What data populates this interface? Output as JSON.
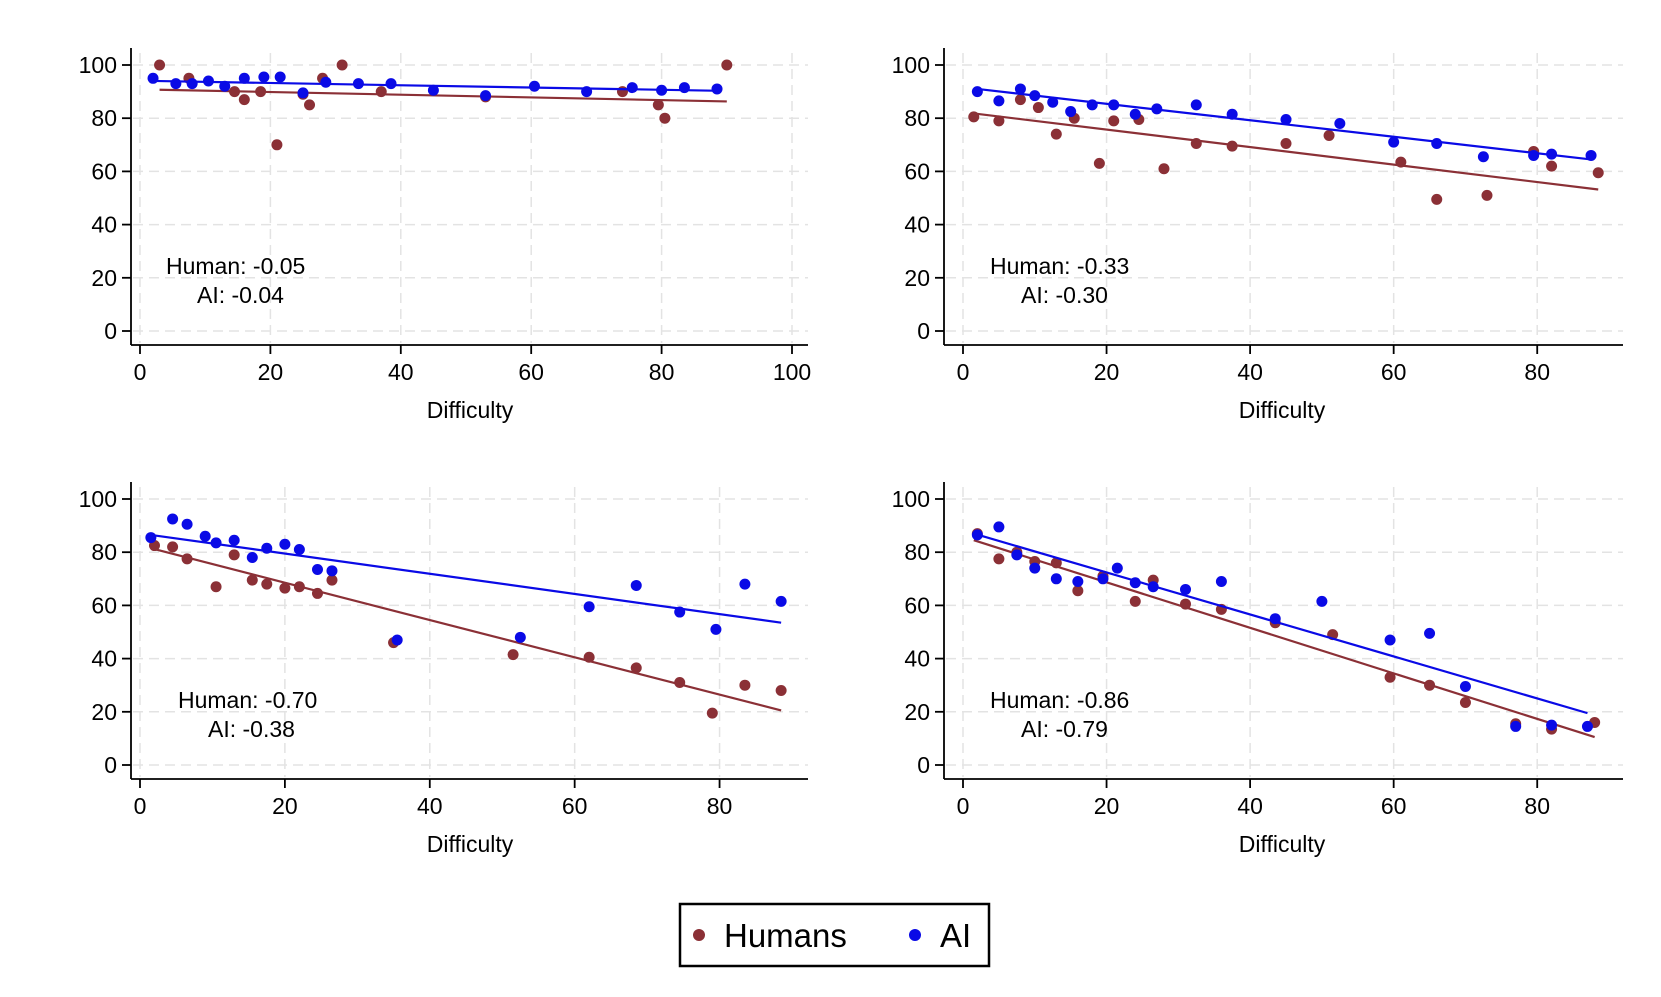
{
  "colors": {
    "human": "#8b3036",
    "ai": "#0a0ae6",
    "grid": "#e3e3e3",
    "axis": "#000000"
  },
  "legend": {
    "placement": "bottom-center",
    "items": [
      {
        "label": "Humans",
        "color_key": "human"
      },
      {
        "label": "AI",
        "color_key": "ai"
      }
    ]
  },
  "chart_data": [
    {
      "type": "scatter",
      "title": "",
      "xlabel": "Difficulty",
      "ylabel": "",
      "xlim": [
        0,
        100
      ],
      "ylim": [
        0,
        100
      ],
      "xticks": [
        "0",
        "20",
        "40",
        "60",
        "80",
        "100"
      ],
      "yticks": [
        "0",
        "20",
        "40",
        "60",
        "80",
        "100"
      ],
      "annotation": {
        "human": "Human: -0.05",
        "ai": "AI: -0.04"
      },
      "series": [
        {
          "name": "Humans",
          "color_key": "human",
          "points": [
            [
              3,
              100
            ],
            [
              7.5,
              95
            ],
            [
              14.5,
              90
            ],
            [
              16,
              87
            ],
            [
              18.5,
              90
            ],
            [
              21,
              70
            ],
            [
              25,
              89
            ],
            [
              26,
              85
            ],
            [
              28,
              95
            ],
            [
              31,
              100
            ],
            [
              37,
              90
            ],
            [
              53,
              88
            ],
            [
              74,
              90
            ],
            [
              79.5,
              85
            ],
            [
              80.5,
              80
            ],
            [
              90,
              100
            ]
          ],
          "trend": [
            [
              3,
              90.7
            ],
            [
              90,
              86.3
            ]
          ]
        },
        {
          "name": "AI",
          "color_key": "ai",
          "points": [
            [
              2,
              95
            ],
            [
              5.5,
              93
            ],
            [
              8,
              93
            ],
            [
              10.5,
              94
            ],
            [
              13,
              92
            ],
            [
              16,
              95
            ],
            [
              19,
              95.5
            ],
            [
              21.5,
              95.5
            ],
            [
              25,
              89.5
            ],
            [
              28.5,
              93.5
            ],
            [
              33.5,
              93
            ],
            [
              38.5,
              93
            ],
            [
              45,
              90.5
            ],
            [
              53,
              88.5
            ],
            [
              60.5,
              92
            ],
            [
              68.5,
              90
            ],
            [
              75.5,
              91.5
            ],
            [
              80,
              90.5
            ],
            [
              83.5,
              91.5
            ],
            [
              88.5,
              91
            ]
          ],
          "trend": [
            [
              2,
              94
            ],
            [
              89,
              90.3
            ]
          ]
        }
      ]
    },
    {
      "type": "scatter",
      "title": "",
      "xlabel": "Difficulty",
      "ylabel": "",
      "xlim": [
        0,
        90
      ],
      "ylim": [
        0,
        100
      ],
      "xticks": [
        "0",
        "20",
        "40",
        "60",
        "80"
      ],
      "yticks": [
        "0",
        "20",
        "40",
        "60",
        "80",
        "100"
      ],
      "annotation": {
        "human": "Human: -0.33",
        "ai": "AI: -0.30"
      },
      "series": [
        {
          "name": "Humans",
          "color_key": "human",
          "points": [
            [
              1.5,
              80.5
            ],
            [
              5,
              79
            ],
            [
              8,
              87
            ],
            [
              10.5,
              84
            ],
            [
              13,
              74
            ],
            [
              15.5,
              80
            ],
            [
              19,
              63
            ],
            [
              21,
              79
            ],
            [
              24.5,
              79.5
            ],
            [
              28,
              61
            ],
            [
              32.5,
              70.5
            ],
            [
              37.5,
              69.5
            ],
            [
              45,
              70.5
            ],
            [
              51,
              73.5
            ],
            [
              61,
              63.5
            ],
            [
              66,
              49.5
            ],
            [
              73,
              51
            ],
            [
              79.5,
              67.5
            ],
            [
              82,
              62
            ],
            [
              88.5,
              59.5
            ]
          ],
          "trend": [
            [
              1.5,
              81.8
            ],
            [
              88.5,
              53.2
            ]
          ]
        },
        {
          "name": "AI",
          "color_key": "ai",
          "points": [
            [
              2,
              90
            ],
            [
              5,
              86.5
            ],
            [
              8,
              91
            ],
            [
              10,
              88.5
            ],
            [
              12.5,
              86
            ],
            [
              15,
              82.5
            ],
            [
              18,
              85
            ],
            [
              21,
              85
            ],
            [
              24,
              81.5
            ],
            [
              27,
              83.5
            ],
            [
              32.5,
              85
            ],
            [
              37.5,
              81.5
            ],
            [
              45,
              79.5
            ],
            [
              52.5,
              78
            ],
            [
              60,
              71
            ],
            [
              66,
              70.5
            ],
            [
              72.5,
              65.5
            ],
            [
              79.5,
              66
            ],
            [
              82,
              66.5
            ],
            [
              87.5,
              66
            ]
          ],
          "trend": [
            [
              2,
              91
            ],
            [
              87.5,
              64.5
            ]
          ]
        }
      ]
    },
    {
      "type": "scatter",
      "title": "",
      "xlabel": "Difficulty",
      "ylabel": "",
      "xlim": [
        0,
        90
      ],
      "ylim": [
        0,
        100
      ],
      "xticks": [
        "0",
        "20",
        "40",
        "60",
        "80"
      ],
      "yticks": [
        "0",
        "20",
        "40",
        "60",
        "80",
        "100"
      ],
      "annotation": {
        "human": "Human: -0.70",
        "ai": "AI: -0.38"
      },
      "series": [
        {
          "name": "Humans",
          "color_key": "human",
          "points": [
            [
              2,
              82.5
            ],
            [
              4.5,
              82
            ],
            [
              6.5,
              77.5
            ],
            [
              10.5,
              67
            ],
            [
              13,
              79
            ],
            [
              15.5,
              69.5
            ],
            [
              17.5,
              68
            ],
            [
              20,
              66.5
            ],
            [
              22,
              67
            ],
            [
              24.5,
              64.5
            ],
            [
              26.5,
              69.5
            ],
            [
              35,
              46
            ],
            [
              51.5,
              41.5
            ],
            [
              62,
              40.5
            ],
            [
              68.5,
              36.5
            ],
            [
              74.5,
              31
            ],
            [
              79,
              19.5
            ],
            [
              83.5,
              30
            ],
            [
              88.5,
              28
            ]
          ],
          "trend": [
            [
              1.5,
              81.5
            ],
            [
              88.5,
              20.5
            ]
          ]
        },
        {
          "name": "AI",
          "color_key": "ai",
          "points": [
            [
              1.5,
              85.5
            ],
            [
              4.5,
              92.5
            ],
            [
              6.5,
              90.5
            ],
            [
              9,
              86
            ],
            [
              10.5,
              83.5
            ],
            [
              13,
              84.5
            ],
            [
              15.5,
              78
            ],
            [
              17.5,
              81.5
            ],
            [
              20,
              83
            ],
            [
              22,
              81
            ],
            [
              24.5,
              73.5
            ],
            [
              26.5,
              73
            ],
            [
              35.5,
              47
            ],
            [
              52.5,
              48
            ],
            [
              62,
              59.5
            ],
            [
              68.5,
              67.5
            ],
            [
              74.5,
              57.5
            ],
            [
              79.5,
              51
            ],
            [
              83.5,
              68
            ],
            [
              88.5,
              61.5
            ]
          ],
          "trend": [
            [
              1.5,
              86.5
            ],
            [
              88.5,
              53.5
            ]
          ]
        }
      ]
    },
    {
      "type": "scatter",
      "title": "",
      "xlabel": "Difficulty",
      "ylabel": "",
      "xlim": [
        0,
        90
      ],
      "ylim": [
        0,
        100
      ],
      "xticks": [
        "0",
        "20",
        "40",
        "60",
        "80"
      ],
      "yticks": [
        "0",
        "20",
        "40",
        "60",
        "80",
        "100"
      ],
      "annotation": {
        "human": "Human: -0.86",
        "ai": "AI: -0.79"
      },
      "series": [
        {
          "name": "Humans",
          "color_key": "human",
          "points": [
            [
              2,
              87
            ],
            [
              5,
              77.5
            ],
            [
              7.5,
              80
            ],
            [
              10,
              76.5
            ],
            [
              13,
              76
            ],
            [
              16,
              65.5
            ],
            [
              19.5,
              71
            ],
            [
              24,
              61.5
            ],
            [
              26.5,
              69.5
            ],
            [
              31,
              60.5
            ],
            [
              36,
              58.5
            ],
            [
              43.5,
              53.5
            ],
            [
              51.5,
              49
            ],
            [
              59.5,
              33
            ],
            [
              65,
              30
            ],
            [
              70,
              23.5
            ],
            [
              77,
              15.5
            ],
            [
              82,
              13.5
            ],
            [
              88,
              16
            ]
          ],
          "trend": [
            [
              1.5,
              84.5
            ],
            [
              88,
              10.5
            ]
          ]
        },
        {
          "name": "AI",
          "color_key": "ai",
          "points": [
            [
              2,
              86.5
            ],
            [
              5,
              89.5
            ],
            [
              7.5,
              79
            ],
            [
              10,
              74
            ],
            [
              13,
              70
            ],
            [
              16,
              69
            ],
            [
              19.5,
              70
            ],
            [
              21.5,
              74
            ],
            [
              24,
              68.5
            ],
            [
              26.5,
              67
            ],
            [
              31,
              66
            ],
            [
              36,
              69
            ],
            [
              43.5,
              55
            ],
            [
              50,
              61.5
            ],
            [
              59.5,
              47
            ],
            [
              65,
              49.5
            ],
            [
              70,
              29.5
            ],
            [
              77,
              14.5
            ],
            [
              82,
              15
            ],
            [
              87,
              14.5
            ]
          ],
          "trend": [
            [
              1.5,
              87
            ],
            [
              87,
              19.5
            ]
          ]
        }
      ]
    }
  ]
}
